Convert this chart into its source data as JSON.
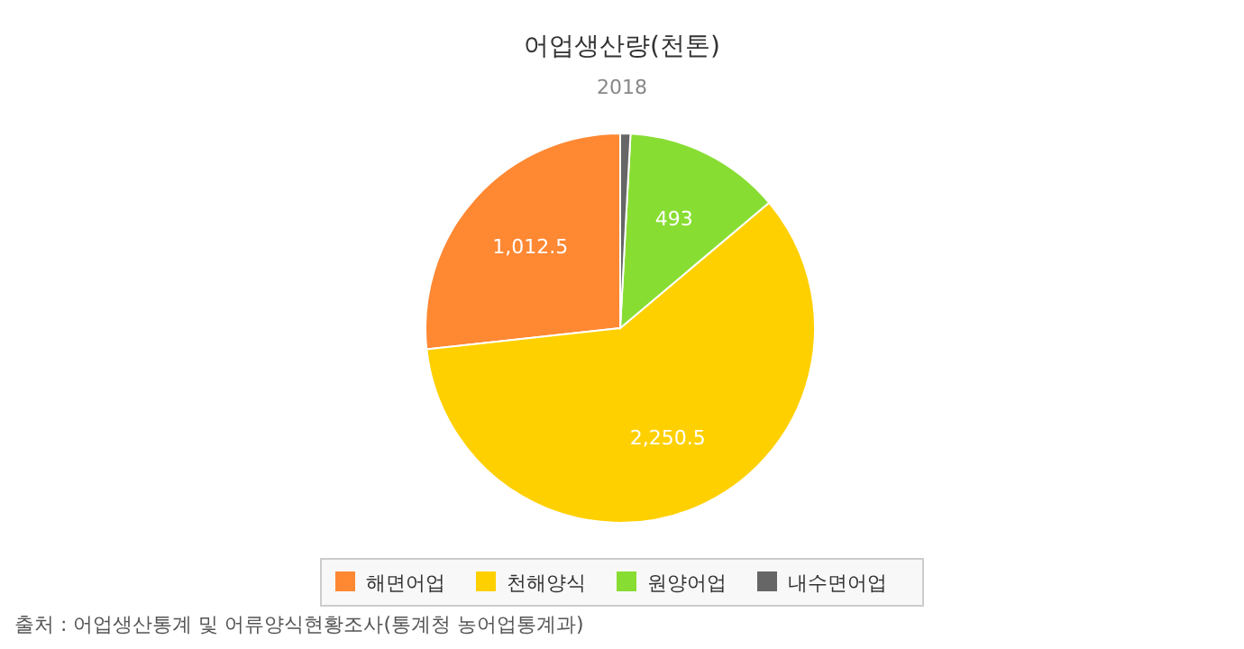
{
  "chart_data": {
    "type": "pie",
    "title": "어업생산량(천톤)",
    "subtitle": "2018",
    "categories": [
      "해면어업",
      "천해양식",
      "원양어업",
      "내수면어업"
    ],
    "values": [
      1012.5,
      2250.5,
      493,
      32
    ],
    "colors": [
      "#ff8833",
      "#ffd000",
      "#88dd33",
      "#666666"
    ],
    "value_labels": [
      "1,012.5",
      "2,250.5",
      "493",
      null
    ],
    "legend": "bottom",
    "annotations": [
      "출처 : 어업생산통계 및 어류양식현황조사(통계청 농어업통계과)"
    ]
  }
}
